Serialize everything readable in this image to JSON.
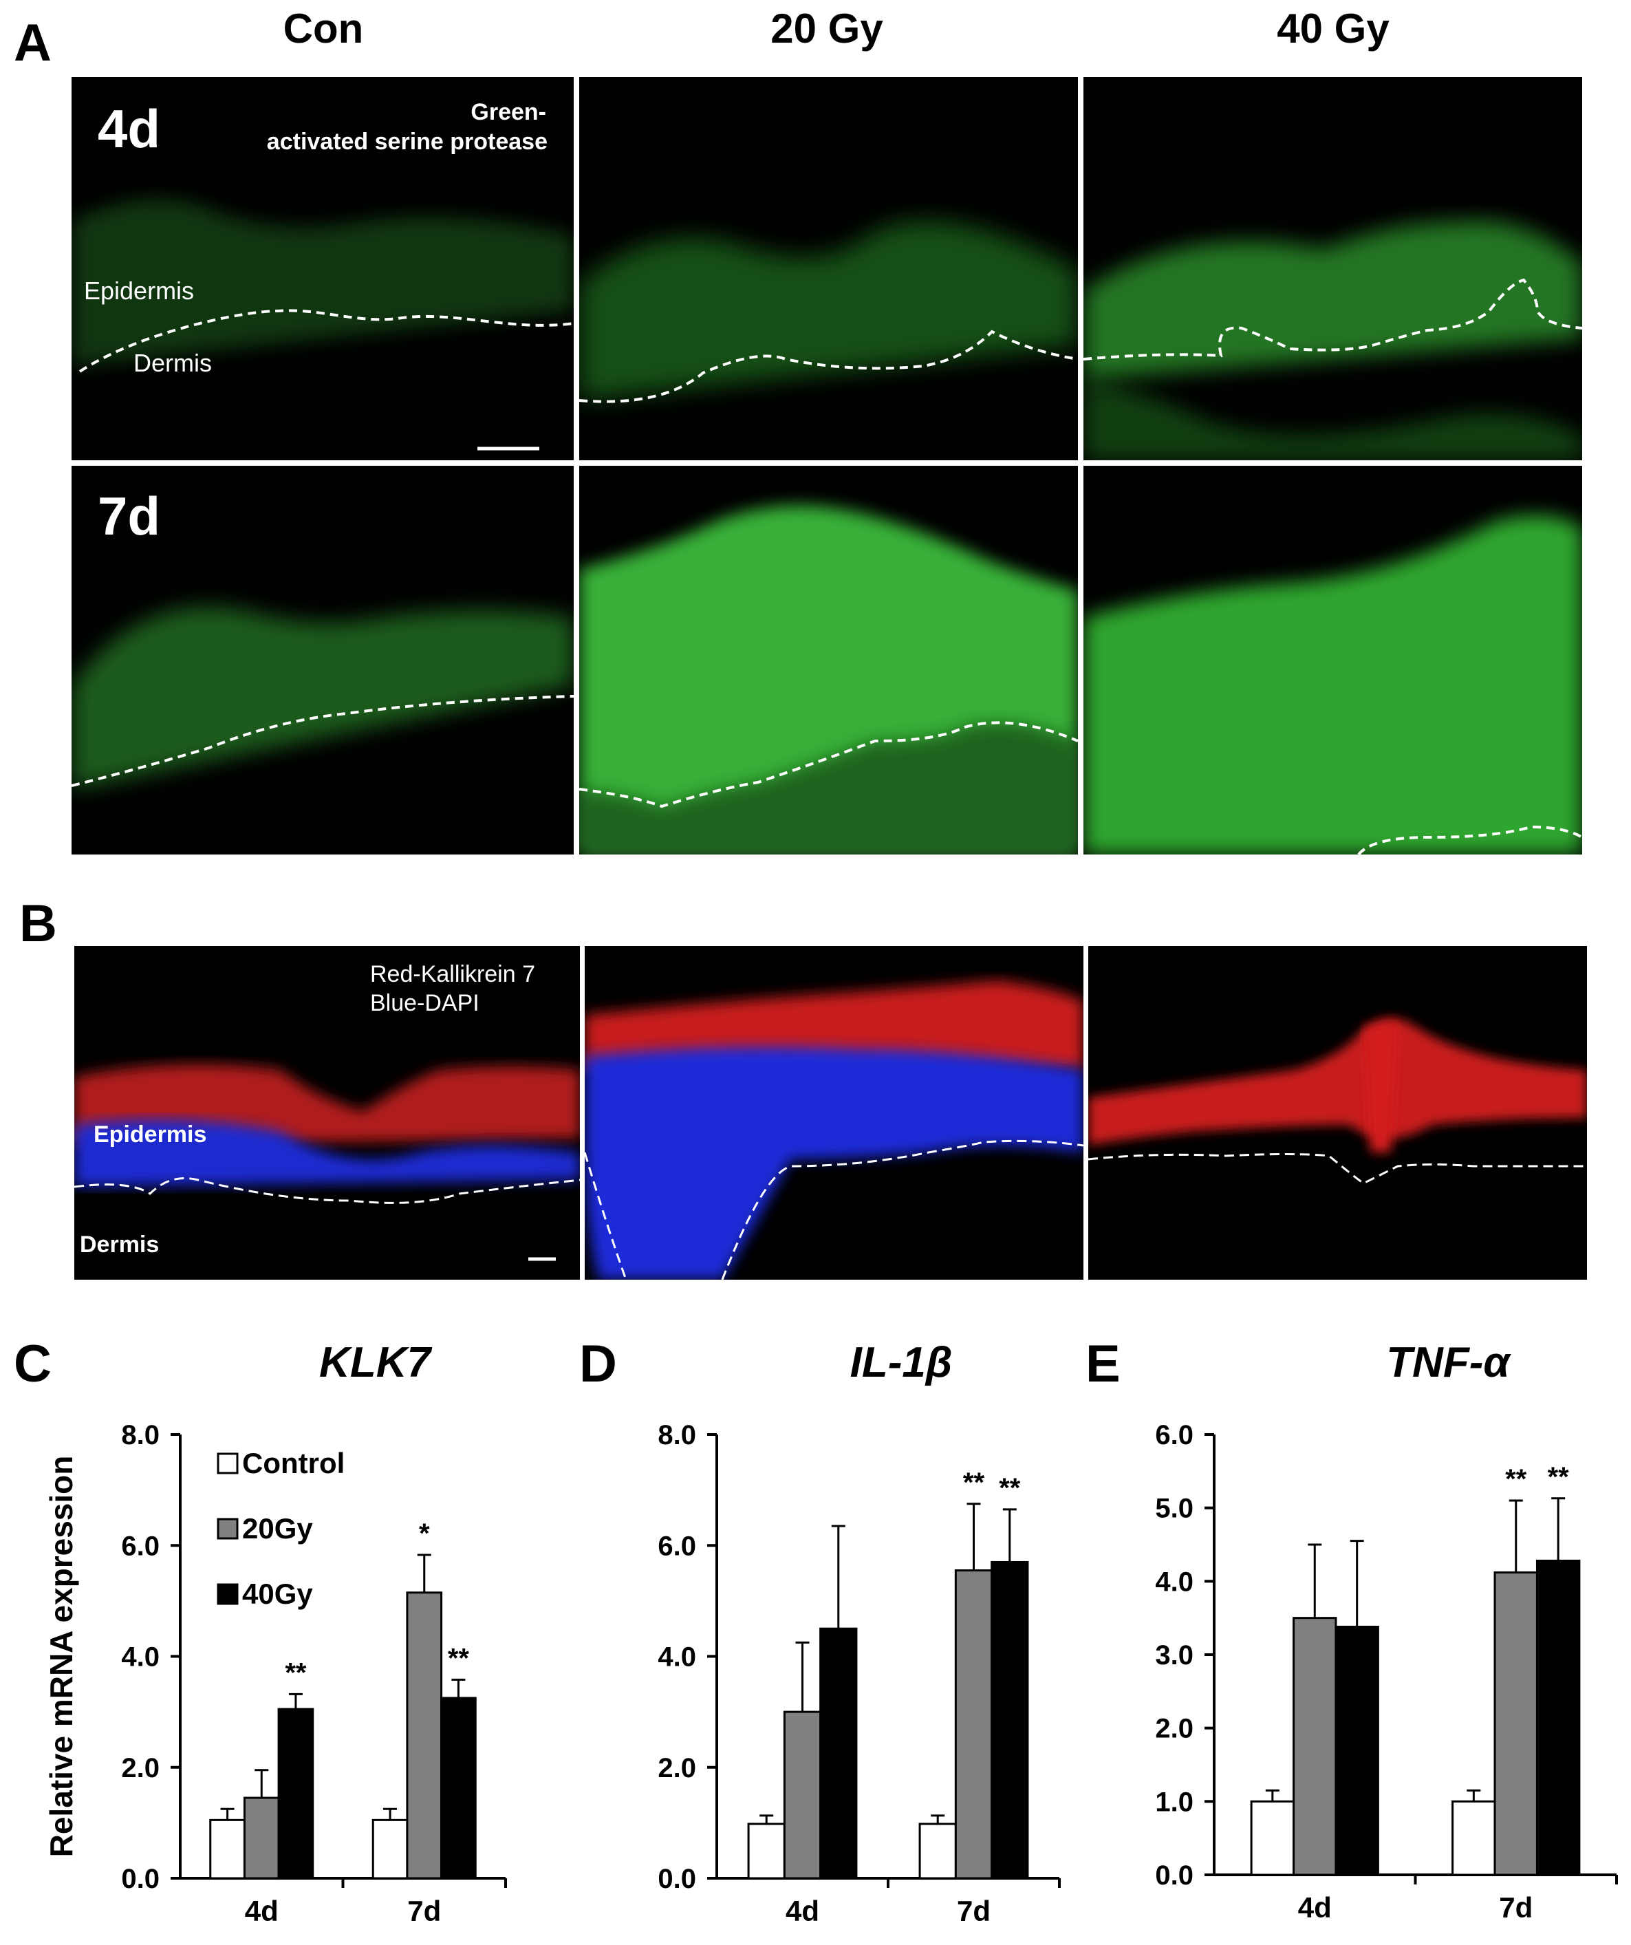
{
  "figure": {
    "panel_a": {
      "letter": "A",
      "columns": [
        "Con",
        "20 Gy",
        "40 Gy"
      ],
      "rows": [
        "4d",
        "7d"
      ],
      "stain_label_line1": "Green-",
      "stain_label_line2": "activated serine protease",
      "epidermis_label": "Epidermis",
      "dermis_label": "Dermis",
      "stain_color": "#2fbf2f"
    },
    "panel_b": {
      "letter": "B",
      "stain_label_line1": "Red-Kallikrein 7",
      "stain_label_line2": "Blue-DAPI",
      "epidermis_label": "Epidermis",
      "dermis_label": "Dermis",
      "red_color": "#e0191b",
      "blue_color": "#1f2ff5"
    }
  },
  "chart_data": [
    {
      "letter": "C",
      "type": "bar",
      "title": "KLK7",
      "ylabel": "Relative mRNA expression",
      "categories": [
        "4d",
        "7d"
      ],
      "ylim": [
        0,
        8
      ],
      "yticks": [
        "0.0",
        "2.0",
        "4.0",
        "6.0",
        "8.0"
      ],
      "legend": [
        "Control",
        "20Gy",
        "40Gy"
      ],
      "legend_position": "top-left",
      "series": [
        {
          "name": "Control",
          "color": "#ffffff",
          "values": [
            1.05,
            1.05
          ],
          "errors": [
            0.2,
            0.2
          ]
        },
        {
          "name": "20Gy",
          "color": "#808080",
          "values": [
            1.45,
            5.15
          ],
          "errors": [
            0.5,
            0.68
          ]
        },
        {
          "name": "40Gy",
          "color": "#000000",
          "values": [
            3.05,
            3.25
          ],
          "errors": [
            0.27,
            0.33
          ]
        }
      ],
      "annotations": [
        {
          "category": "4d",
          "series": "40Gy",
          "text": "**"
        },
        {
          "category": "7d",
          "series": "20Gy",
          "text": "*"
        },
        {
          "category": "7d",
          "series": "40Gy",
          "text": "**"
        }
      ]
    },
    {
      "letter": "D",
      "type": "bar",
      "title": "IL-1β",
      "ylim": [
        0,
        8
      ],
      "yticks": [
        "0.0",
        "2.0",
        "4.0",
        "6.0",
        "8.0"
      ],
      "categories": [
        "4d",
        "7d"
      ],
      "series": [
        {
          "name": "Control",
          "color": "#ffffff",
          "values": [
            0.98,
            0.98
          ],
          "errors": [
            0.15,
            0.15
          ]
        },
        {
          "name": "20Gy",
          "color": "#808080",
          "values": [
            3.0,
            5.55
          ],
          "errors": [
            1.25,
            1.2
          ]
        },
        {
          "name": "40Gy",
          "color": "#000000",
          "values": [
            4.5,
            5.7
          ],
          "errors": [
            1.85,
            0.95
          ]
        }
      ],
      "annotations": [
        {
          "category": "7d",
          "series": "20Gy",
          "text": "**"
        },
        {
          "category": "7d",
          "series": "40Gy",
          "text": "**"
        }
      ]
    },
    {
      "letter": "E",
      "type": "bar",
      "title": "TNF-α",
      "ylim": [
        0,
        6
      ],
      "yticks": [
        "0.0",
        "1.0",
        "2.0",
        "3.0",
        "4.0",
        "5.0",
        "6.0"
      ],
      "categories": [
        "4d",
        "7d"
      ],
      "series": [
        {
          "name": "Control",
          "color": "#ffffff",
          "values": [
            1.0,
            1.0
          ],
          "errors": [
            0.15,
            0.15
          ]
        },
        {
          "name": "20Gy",
          "color": "#808080",
          "values": [
            3.5,
            4.12
          ],
          "errors": [
            1.0,
            0.98
          ]
        },
        {
          "name": "40Gy",
          "color": "#000000",
          "values": [
            3.38,
            4.28
          ],
          "errors": [
            1.17,
            0.85
          ]
        }
      ],
      "annotations": [
        {
          "category": "7d",
          "series": "20Gy",
          "text": "**"
        },
        {
          "category": "7d",
          "series": "40Gy",
          "text": "**"
        }
      ]
    }
  ]
}
